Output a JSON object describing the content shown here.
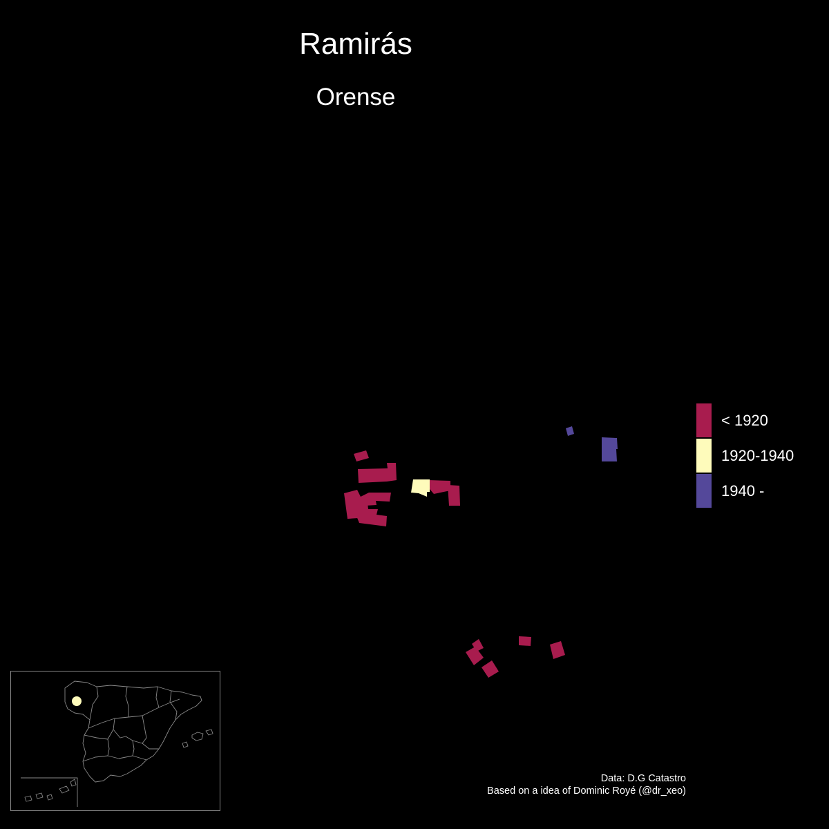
{
  "title": "Ramirás",
  "subtitle": "Orense",
  "colors": {
    "background": "#000000",
    "text": "#ffffff",
    "pre_1920": "#a81c4e",
    "between_1920_1940": "#fefbbb",
    "post_1940": "#54489a",
    "inset_lines": "#8a8a8a",
    "inset_marker": "#fefbbb"
  },
  "legend": {
    "items": [
      {
        "label": "< 1920",
        "color": "#a81c4e"
      },
      {
        "label": "1920-1940",
        "color": "#fefbbb"
      },
      {
        "label": "1940 -",
        "color": "#54489a"
      }
    ]
  },
  "map": {
    "buildings": [
      {
        "period": "< 1920"
      },
      {
        "period": "< 1920"
      },
      {
        "period": "< 1920"
      },
      {
        "period": "< 1920"
      },
      {
        "period": "< 1920"
      },
      {
        "period": "< 1920"
      },
      {
        "period": "< 1920"
      },
      {
        "period": "< 1920"
      },
      {
        "period": "< 1920"
      },
      {
        "period": "< 1920"
      },
      {
        "period": "< 1920"
      },
      {
        "period": "< 1920"
      },
      {
        "period": "< 1920"
      },
      {
        "period": "< 1920"
      },
      {
        "period": "1920-1940"
      },
      {
        "period": "1940 -"
      },
      {
        "period": "1940 -"
      }
    ]
  },
  "inset": {
    "description_icon": "spain-outline-map"
  },
  "credits": {
    "line1": "Data: D.G Catastro",
    "line2": "Based on a idea of Dominic Royé (@dr_xeo)"
  }
}
